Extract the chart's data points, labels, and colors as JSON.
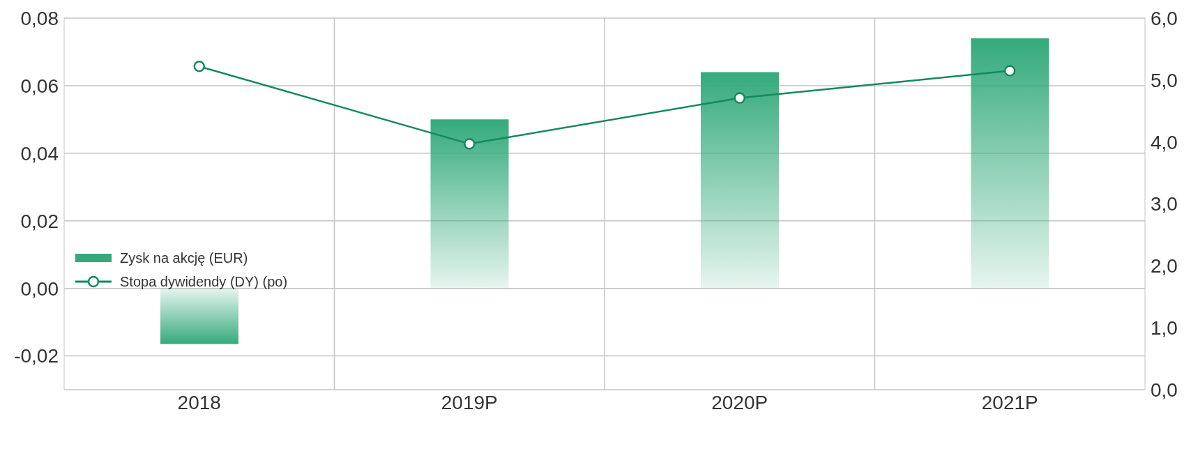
{
  "chart_data": {
    "type": "bar",
    "categories": [
      "2018",
      "2019P",
      "2020P",
      "2021P"
    ],
    "series": [
      {
        "name": "Zysk na akcję (EUR)",
        "color": "#34aa7c",
        "values": [
          -0.0165,
          0.05,
          0.064,
          0.074
        ]
      },
      {
        "name": "Stopa dywidendy (DY) (po)",
        "type": "line",
        "axis": "y2",
        "color": "#13895f",
        "values": [
          5.22,
          3.97,
          4.71,
          5.15
        ]
      }
    ],
    "ylim": [
      -0.03,
      0.08
    ],
    "yticks": [
      {
        "value": -0.02,
        "label": "-0,02"
      },
      {
        "value": 0,
        "label": "0,00"
      },
      {
        "value": 0.02,
        "label": "0,02"
      },
      {
        "value": 0.04,
        "label": "0,04"
      },
      {
        "value": 0.06,
        "label": "0,06"
      },
      {
        "value": 0.08,
        "label": "0,08"
      }
    ],
    "y2lim": [
      0,
      6
    ],
    "y2ticks": [
      {
        "value": 0,
        "label": "0,0"
      },
      {
        "value": 1,
        "label": "1,0"
      },
      {
        "value": 2,
        "label": "2,0"
      },
      {
        "value": 3,
        "label": "3,0"
      },
      {
        "value": 4,
        "label": "4,0"
      },
      {
        "value": 5,
        "label": "5,0"
      },
      {
        "value": 6,
        "label": "6,0"
      }
    ],
    "grid": true,
    "legend": "left",
    "marker": "circle",
    "line_style": "solid"
  }
}
